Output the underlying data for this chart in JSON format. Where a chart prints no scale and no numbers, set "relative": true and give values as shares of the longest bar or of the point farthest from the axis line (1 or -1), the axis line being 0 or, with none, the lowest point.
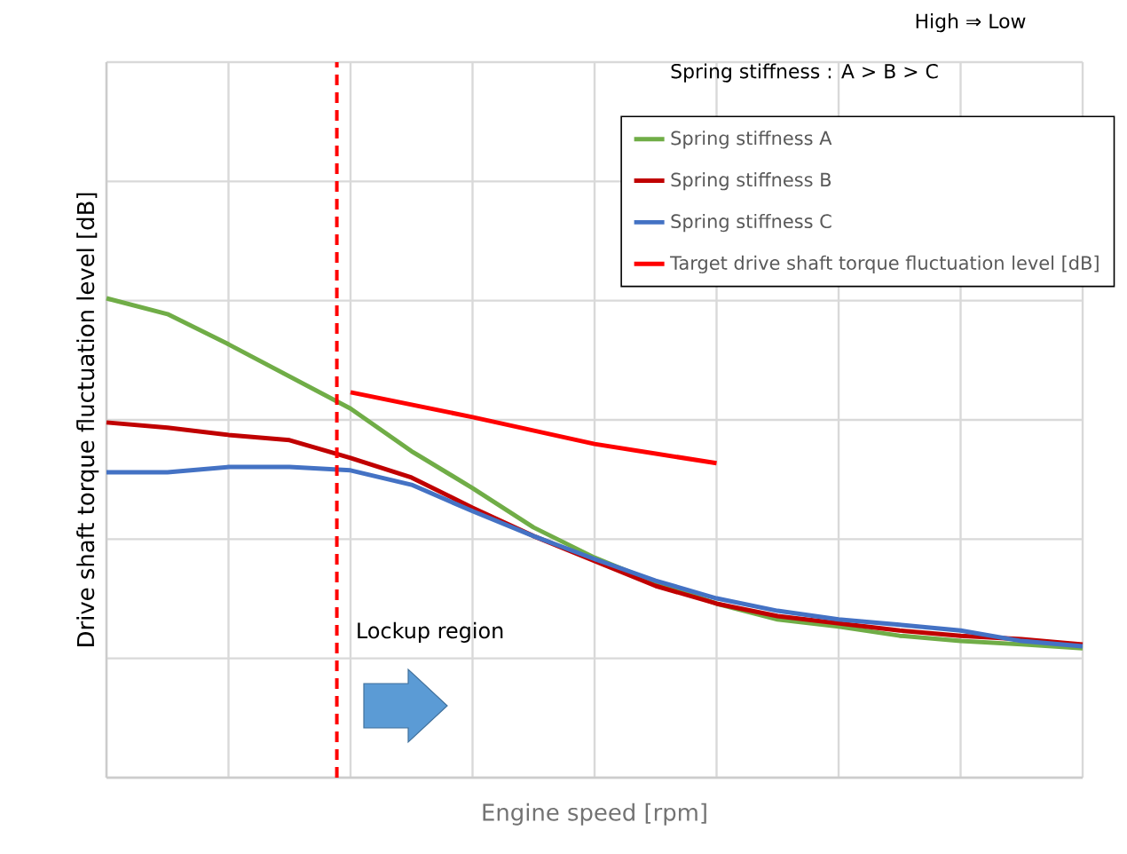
{
  "chart_data": {
    "type": "line",
    "relative": true,
    "xlabel": "Engine speed [rpm]",
    "ylabel": "Drive shaft torque fluctuation level [dB]",
    "categories": [
      null,
      null,
      null,
      null,
      null,
      null,
      null,
      null,
      null,
      null,
      null,
      null,
      null,
      null,
      null,
      null,
      null
    ],
    "series": [
      {
        "name": "Spring stiffness A",
        "color": "#70ad47",
        "values": [
          1.0,
          0.967,
          0.904,
          0.837,
          0.77,
          0.681,
          0.604,
          0.522,
          0.459,
          0.407,
          0.363,
          0.33,
          0.315,
          0.296,
          0.285,
          0.278,
          0.27
        ]
      },
      {
        "name": "Spring stiffness B",
        "color": "#c00000",
        "values": [
          0.741,
          0.73,
          0.715,
          0.704,
          0.667,
          0.626,
          0.563,
          0.504,
          0.452,
          0.4,
          0.363,
          0.337,
          0.322,
          0.307,
          0.296,
          0.289,
          0.278
        ]
      },
      {
        "name": "Spring stiffness C",
        "color": "#4472c4",
        "values": [
          0.637,
          0.637,
          0.648,
          0.648,
          0.641,
          0.611,
          0.556,
          0.504,
          0.456,
          0.411,
          0.374,
          0.348,
          0.33,
          0.319,
          0.307,
          0.285,
          0.274
        ]
      },
      {
        "name": "Target drive shaft torque fluctuation level [dB]",
        "color": "#ff0000",
        "values": [
          null,
          null,
          null,
          null,
          0.804,
          null,
          0.752,
          null,
          0.696,
          null,
          0.656,
          null,
          null,
          null,
          null,
          null,
          null
        ]
      }
    ],
    "annotations": [
      "High ⇒ Low",
      "Spring stiffness  :  A > B > C",
      "Lockup region"
    ],
    "grid": true,
    "legend": "top right",
    "tick_labels": false,
    "marker": "none",
    "line_style": "solid"
  }
}
